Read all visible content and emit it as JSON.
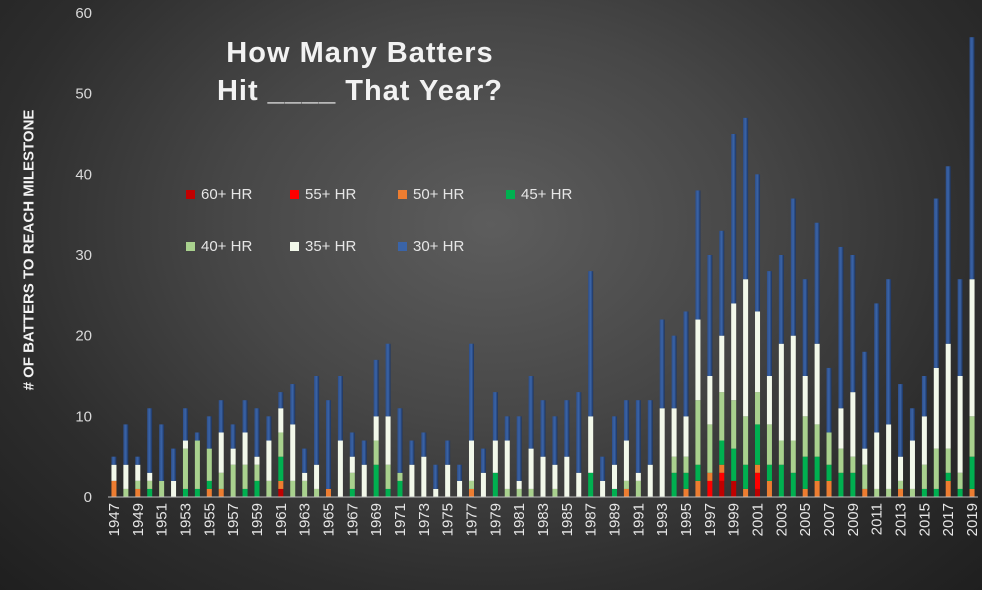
{
  "title_line1": "How Many Batters",
  "title_line2": "Hit ____ That Year?",
  "chart_data": {
    "type": "bar",
    "stacked": true,
    "title": "How Many Batters Hit ____ That Year?",
    "xlabel": "",
    "ylabel": "# OF BATTERS TO REACH MILESTONE",
    "ylim": [
      0,
      60
    ],
    "yticks": [
      0,
      10,
      20,
      30,
      40,
      50,
      60
    ],
    "grid": false,
    "legend_position": "top-left (inside plot, two rows)",
    "categories": [
      "1947",
      "1948",
      "1949",
      "1950",
      "1951",
      "1952",
      "1953",
      "1954",
      "1955",
      "1956",
      "1957",
      "1958",
      "1959",
      "1960",
      "1961",
      "1962",
      "1963",
      "1964",
      "1965",
      "1966",
      "1967",
      "1968",
      "1969",
      "1970",
      "1971",
      "1972",
      "1973",
      "1974",
      "1975",
      "1976",
      "1977",
      "1978",
      "1979",
      "1980",
      "1981",
      "1982",
      "1983",
      "1984",
      "1985",
      "1986",
      "1987",
      "1988",
      "1989",
      "1990",
      "1991",
      "1992",
      "1993",
      "1994",
      "1995",
      "1996",
      "1997",
      "1998",
      "1999",
      "2000",
      "2001",
      "2002",
      "2003",
      "2004",
      "2005",
      "2006",
      "2007",
      "2008",
      "2009",
      "2010",
      "2011",
      "2012",
      "2013",
      "2014",
      "2015",
      "2016",
      "2017",
      "2018",
      "2019"
    ],
    "xtick_labels": [
      "1947",
      "1949",
      "1951",
      "1953",
      "1955",
      "1957",
      "1959",
      "1961",
      "1963",
      "1965",
      "1967",
      "1969",
      "1971",
      "1973",
      "1975",
      "1977",
      "1979",
      "1981",
      "1983",
      "1985",
      "1987",
      "1989",
      "1991",
      "1993",
      "1995",
      "1997",
      "1999",
      "2001",
      "2003",
      "2005",
      "2007",
      "2009",
      "2011",
      "2013",
      "2015",
      "2017",
      "2019"
    ],
    "series": [
      {
        "name": "60+ HR",
        "color": "#c00000",
        "values": [
          0,
          0,
          0,
          0,
          0,
          0,
          0,
          0,
          0,
          0,
          0,
          0,
          0,
          0,
          1,
          0,
          0,
          0,
          0,
          0,
          0,
          0,
          0,
          0,
          0,
          0,
          0,
          0,
          0,
          0,
          0,
          0,
          0,
          0,
          0,
          0,
          0,
          0,
          0,
          0,
          0,
          0,
          0,
          0,
          0,
          0,
          0,
          0,
          0,
          0,
          0,
          2,
          2,
          0,
          1,
          0,
          0,
          0,
          0,
          0,
          0,
          0,
          0,
          0,
          0,
          0,
          0,
          0,
          0,
          0,
          0,
          0,
          0
        ]
      },
      {
        "name": "55+ HR",
        "color": "#ff0000",
        "values": [
          0,
          0,
          0,
          0,
          0,
          0,
          0,
          0,
          0,
          0,
          0,
          0,
          0,
          0,
          0,
          0,
          0,
          0,
          0,
          0,
          0,
          0,
          0,
          0,
          0,
          0,
          0,
          0,
          0,
          0,
          0,
          0,
          0,
          0,
          0,
          0,
          0,
          0,
          0,
          0,
          0,
          0,
          0,
          0,
          0,
          0,
          0,
          0,
          0,
          0,
          2,
          1,
          0,
          0,
          2,
          0,
          0,
          0,
          0,
          0,
          0,
          0,
          0,
          0,
          0,
          0,
          0,
          0,
          0,
          0,
          0,
          0,
          0
        ]
      },
      {
        "name": "50+ HR",
        "color": "#ed7d31",
        "values": [
          2,
          0,
          1,
          0,
          0,
          0,
          0,
          0,
          1,
          1,
          0,
          0,
          0,
          0,
          1,
          0,
          0,
          0,
          1,
          0,
          0,
          0,
          0,
          0,
          0,
          0,
          0,
          0,
          0,
          0,
          1,
          0,
          0,
          0,
          0,
          0,
          0,
          0,
          0,
          0,
          0,
          0,
          0,
          1,
          0,
          0,
          0,
          0,
          1,
          2,
          1,
          1,
          0,
          1,
          1,
          2,
          0,
          0,
          1,
          2,
          2,
          0,
          0,
          1,
          0,
          0,
          1,
          0,
          0,
          0,
          2,
          0,
          1
        ]
      },
      {
        "name": "45+ HR",
        "color": "#00b050",
        "values": [
          0,
          0,
          0,
          1,
          0,
          0,
          1,
          1,
          1,
          0,
          0,
          1,
          2,
          0,
          3,
          0,
          0,
          0,
          0,
          0,
          1,
          0,
          4,
          1,
          2,
          0,
          0,
          0,
          0,
          0,
          0,
          0,
          3,
          0,
          0,
          0,
          0,
          0,
          0,
          0,
          3,
          0,
          1,
          0,
          0,
          0,
          0,
          3,
          2,
          2,
          0,
          3,
          4,
          3,
          5,
          2,
          4,
          3,
          4,
          3,
          2,
          3,
          3,
          0,
          0,
          0,
          0,
          0,
          1,
          1,
          1,
          1,
          4
        ]
      },
      {
        "name": "40+ HR",
        "color": "#a9d18e",
        "values": [
          0,
          1,
          1,
          1,
          2,
          0,
          5,
          6,
          4,
          2,
          4,
          3,
          2,
          2,
          3,
          2,
          2,
          1,
          0,
          0,
          2,
          0,
          3,
          3,
          1,
          0,
          0,
          0,
          0,
          0,
          1,
          0,
          0,
          1,
          1,
          1,
          0,
          1,
          0,
          0,
          0,
          0,
          0,
          1,
          2,
          0,
          0,
          2,
          2,
          8,
          6,
          6,
          6,
          6,
          4,
          5,
          3,
          4,
          5,
          4,
          4,
          3,
          2,
          3,
          1,
          1,
          1,
          1,
          3,
          5,
          3,
          2,
          5
        ]
      },
      {
        "name": "35+ HR",
        "color": "#f2f8ea",
        "values": [
          2,
          3,
          2,
          1,
          0,
          2,
          1,
          0,
          0,
          5,
          2,
          4,
          1,
          5,
          3,
          7,
          1,
          3,
          0,
          7,
          2,
          4,
          3,
          6,
          0,
          4,
          5,
          1,
          4,
          2,
          5,
          3,
          4,
          6,
          1,
          5,
          5,
          3,
          5,
          3,
          7,
          2,
          3,
          5,
          1,
          4,
          11,
          6,
          5,
          10,
          6,
          7,
          12,
          17,
          10,
          6,
          12,
          13,
          5,
          10,
          0,
          5,
          8,
          2,
          7,
          8,
          3,
          6,
          6,
          10,
          13,
          12,
          17
        ]
      },
      {
        "name": "30+ HR",
        "color": "#203864",
        "values": [
          1,
          5,
          1,
          8,
          7,
          4,
          4,
          1,
          4,
          4,
          3,
          4,
          6,
          3,
          2,
          5,
          3,
          11,
          11,
          8,
          3,
          3,
          7,
          9,
          8,
          3,
          3,
          3,
          3,
          2,
          12,
          3,
          6,
          3,
          8,
          9,
          7,
          6,
          7,
          10,
          18,
          3,
          6,
          5,
          9,
          8,
          11,
          9,
          13,
          16,
          15,
          13,
          21,
          20,
          17,
          13,
          11,
          17,
          12,
          15,
          8,
          20,
          17,
          12,
          16,
          18,
          9,
          4,
          5,
          21,
          22,
          12,
          30
        ]
      }
    ]
  }
}
